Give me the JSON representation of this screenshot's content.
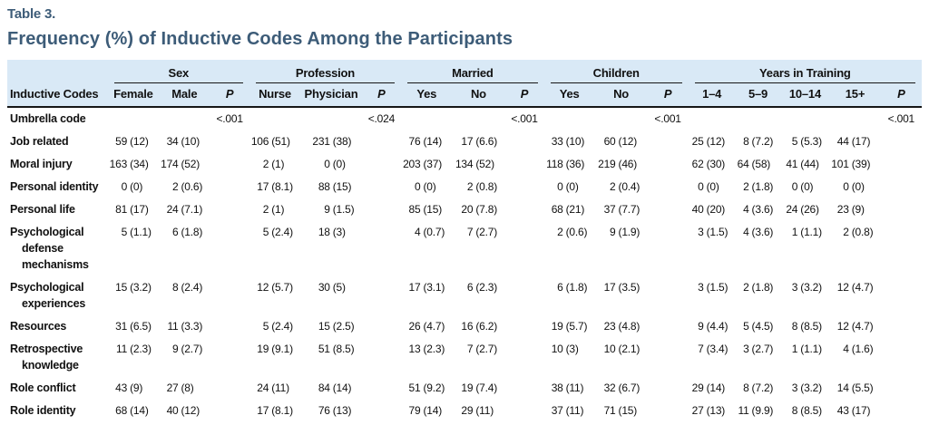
{
  "table_label": "Table 3.",
  "title": "Frequency (%) of Inductive Codes Among the Participants",
  "colors": {
    "title_text": "#3d5c78",
    "header_background": "#d9e9f6",
    "body_text": "#111111",
    "rule_lines": "#161616"
  },
  "header": {
    "row_label": "Inductive Codes",
    "groups": [
      {
        "label": "Sex",
        "cols": [
          "Female",
          "Male",
          "P"
        ]
      },
      {
        "label": "Profession",
        "cols": [
          "Nurse",
          "Physician",
          "P"
        ]
      },
      {
        "label": "Married",
        "cols": [
          "Yes",
          "No",
          "P"
        ]
      },
      {
        "label": "Children",
        "cols": [
          "Yes",
          "No",
          "P"
        ]
      },
      {
        "label": "Years in Training",
        "cols": [
          "1–4",
          "5–9",
          "10–14",
          "15+",
          "P"
        ]
      }
    ]
  },
  "rows": [
    {
      "label": "Umbrella code",
      "cells": [
        "",
        "",
        "<.001",
        "",
        "",
        "<.024",
        "",
        "",
        "<.001",
        "",
        "",
        "<.001",
        "",
        "",
        "",
        "",
        "<.001"
      ]
    },
    {
      "label": "Job related",
      "cells": [
        "59 (12)",
        "34 (10)",
        "",
        "106 (51)",
        "231 (38)",
        "",
        "76 (14)",
        "17 (6.6)",
        "",
        "33 (10)",
        "60 (12)",
        "",
        "25 (12)",
        "8 (7.2)",
        "5 (5.3)",
        "44 (17)",
        ""
      ]
    },
    {
      "label": "Moral injury",
      "cells": [
        "163 (34)",
        "174 (52)",
        "",
        "2 (1)",
        "0 (0)",
        "",
        "203 (37)",
        "134 (52)",
        "",
        "118 (36)",
        "219 (46)",
        "",
        "62 (30)",
        "64 (58)",
        "41 (44)",
        "101 (39)",
        ""
      ]
    },
    {
      "label": "Personal identity",
      "cells": [
        "0 (0)",
        "2 (0.6)",
        "",
        "17 (8.1)",
        "88 (15)",
        "",
        "0 (0)",
        "2 (0.8)",
        "",
        "0 (0)",
        "2 (0.4)",
        "",
        "0 (0)",
        "2 (1.8)",
        "0 (0)",
        "0 (0)",
        ""
      ]
    },
    {
      "label": "Personal life",
      "cells": [
        "81 (17)",
        "24 (7.1)",
        "",
        "2 (1)",
        "9 (1.5)",
        "",
        "85 (15)",
        "20 (7.8)",
        "",
        "68 (21)",
        "37 (7.7)",
        "",
        "40 (20)",
        "4 (3.6)",
        "24 (26)",
        "23 (9)",
        ""
      ]
    },
    {
      "label": "Psychological defense mechanisms",
      "cells": [
        "5 (1.1)",
        "6 (1.8)",
        "",
        "5 (2.4)",
        "18 (3)",
        "",
        "4 (0.7)",
        "7 (2.7)",
        "",
        "2 (0.6)",
        "9 (1.9)",
        "",
        "3 (1.5)",
        "4 (3.6)",
        "1 (1.1)",
        "2 (0.8)",
        ""
      ]
    },
    {
      "label": "Psychological experiences",
      "cells": [
        "15 (3.2)",
        "8 (2.4)",
        "",
        "12 (5.7)",
        "30 (5)",
        "",
        "17 (3.1)",
        "6 (2.3)",
        "",
        "6 (1.8)",
        "17 (3.5)",
        "",
        "3 (1.5)",
        "2 (1.8)",
        "3 (3.2)",
        "12 (4.7)",
        ""
      ]
    },
    {
      "label": "Resources",
      "cells": [
        "31 (6.5)",
        "11 (3.3)",
        "",
        "5 (2.4)",
        "15 (2.5)",
        "",
        "26 (4.7)",
        "16 (6.2)",
        "",
        "19 (5.7)",
        "23 (4.8)",
        "",
        "9 (4.4)",
        "5 (4.5)",
        "8 (8.5)",
        "12 (4.7)",
        ""
      ]
    },
    {
      "label": "Retrospective knowledge",
      "cells": [
        "11 (2.3)",
        "9 (2.7)",
        "",
        "19 (9.1)",
        "51 (8.5)",
        "",
        "13 (2.3)",
        "7 (2.7)",
        "",
        "10 (3)",
        "10 (2.1)",
        "",
        "7 (3.4)",
        "3 (2.7)",
        "1 (1.1)",
        "4 (1.6)",
        ""
      ]
    },
    {
      "label": "Role conflict",
      "cells": [
        "43 (9)",
        "27 (8)",
        "",
        "24 (11)",
        "84 (14)",
        "",
        "51 (9.2)",
        "19 (7.4)",
        "",
        "38 (11)",
        "32 (6.7)",
        "",
        "29 (14)",
        "8 (7.2)",
        "3 (3.2)",
        "14 (5.5)",
        ""
      ]
    },
    {
      "label": "Role identity",
      "cells": [
        "68 (14)",
        "40 (12)",
        "",
        "17 (8.1)",
        "76 (13)",
        "",
        "79 (14)",
        "29 (11)",
        "",
        "37 (11)",
        "71 (15)",
        "",
        "27 (13)",
        "11 (9.9)",
        "8 (8.5)",
        "43 (17)",
        ""
      ]
    }
  ]
}
